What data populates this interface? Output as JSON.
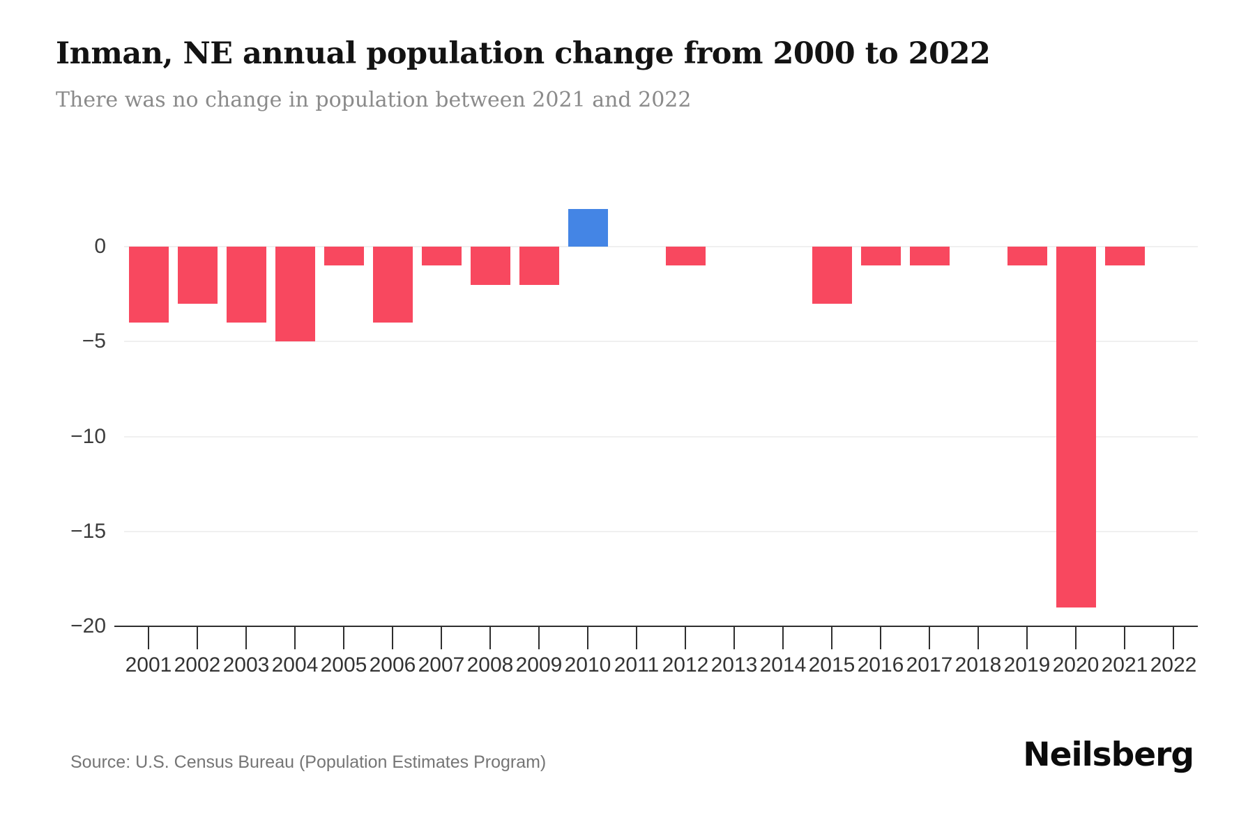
{
  "header": {
    "title": "Inman, NE annual population change from 2000 to 2022",
    "subtitle": "There was no change in population between 2021 and 2022"
  },
  "footer": {
    "source": "Source: U.S. Census Bureau (Population Estimates Program)",
    "brand": "Neilsberg"
  },
  "chart_data": {
    "type": "bar",
    "title": "Inman, NE annual population change from 2000 to 2022",
    "subtitle": "There was no change in population between 2021 and 2022",
    "categories": [
      "2001",
      "2002",
      "2003",
      "2004",
      "2005",
      "2006",
      "2007",
      "2008",
      "2009",
      "2010",
      "2011",
      "2012",
      "2013",
      "2014",
      "2015",
      "2016",
      "2017",
      "2018",
      "2019",
      "2020",
      "2021",
      "2022"
    ],
    "values": [
      -4,
      -3,
      -4,
      -5,
      -1,
      -4,
      -1,
      -2,
      -2,
      2,
      0,
      -1,
      0,
      0,
      -3,
      -1,
      -1,
      0,
      -1,
      -19,
      -1,
      0
    ],
    "xlabel": "",
    "ylabel": "",
    "ylim": [
      -20,
      2
    ],
    "yticks": [
      0,
      -5,
      -10,
      -15,
      -20
    ],
    "ytick_labels": [
      "0",
      "−5",
      "−10",
      "−15",
      "−20"
    ],
    "grid": true,
    "legend": "none",
    "colors": {
      "negative_bar": "#F8485F",
      "positive_bar": "#4485E5",
      "gridline": "#f0f0f0",
      "axis": "#2e2e2e",
      "tick_text": "#333333",
      "title_text": "#131313",
      "subtitle_text": "#8a8a8a",
      "source_text": "#757575"
    }
  }
}
